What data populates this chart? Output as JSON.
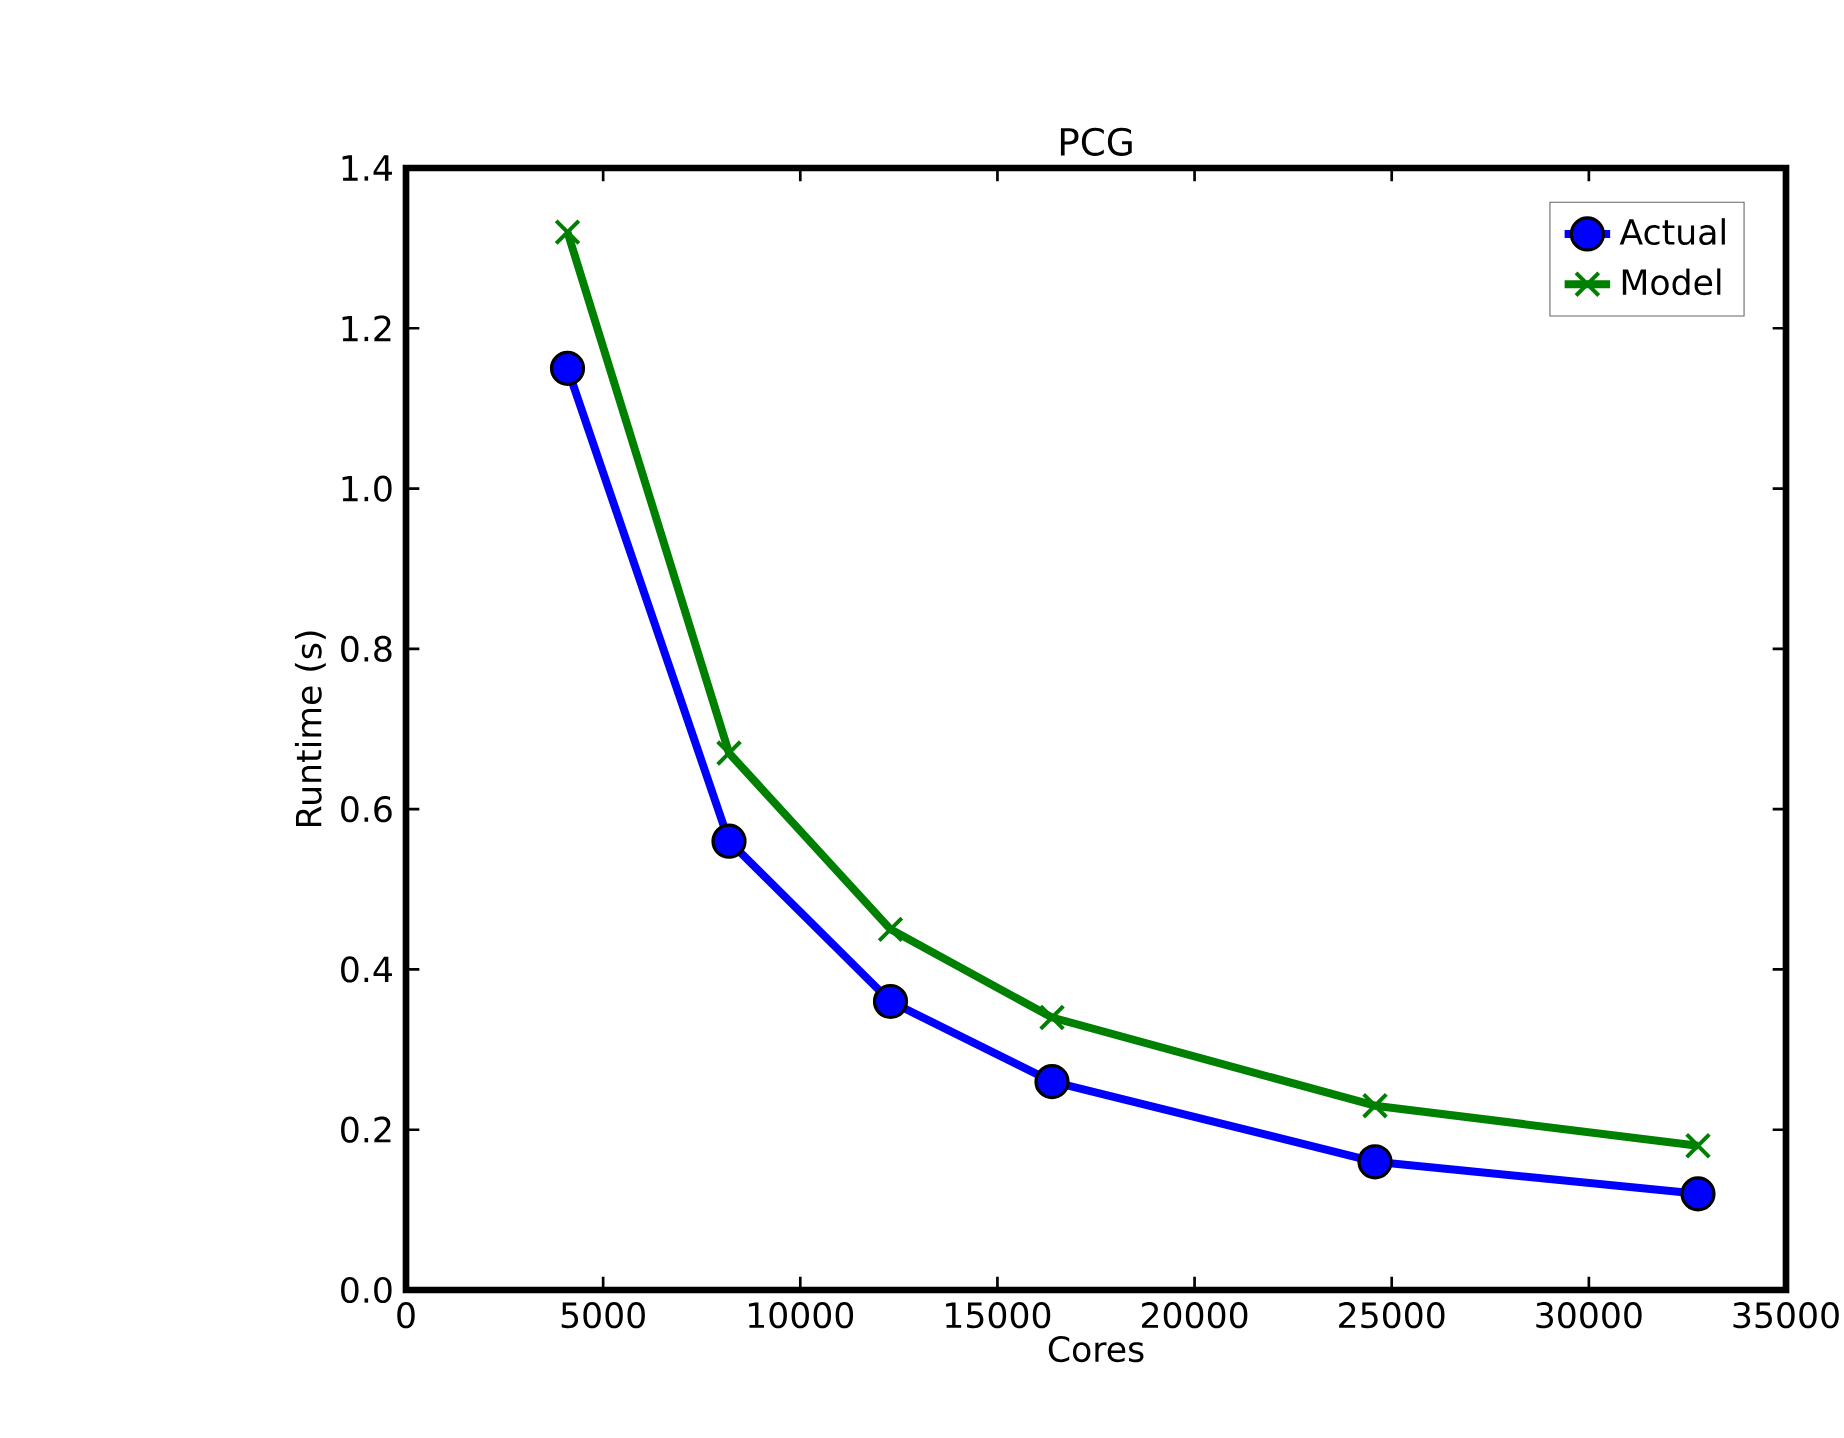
{
  "chart_data": {
    "type": "line",
    "title": "PCG",
    "xlabel": "Cores",
    "ylabel": "Runtime (s)",
    "x": [
      4096,
      8192,
      12288,
      16384,
      24576,
      32768
    ],
    "series": [
      {
        "name": "Actual",
        "color": "#0000ff",
        "marker": "circle",
        "values": [
          1.15,
          0.56,
          0.36,
          0.26,
          0.16,
          0.12
        ]
      },
      {
        "name": "Model",
        "color": "#008000",
        "marker": "cross",
        "values": [
          1.32,
          0.67,
          0.45,
          0.34,
          0.23,
          0.18
        ]
      }
    ],
    "xlim": [
      0,
      35000
    ],
    "ylim": [
      0,
      1.4
    ],
    "xticks": [
      0,
      5000,
      10000,
      15000,
      20000,
      25000,
      30000,
      35000
    ],
    "yticks": [
      {
        "value": 0,
        "label": "0.0"
      },
      {
        "value": 0.2,
        "label": "0.2"
      },
      {
        "value": 0.4,
        "label": "0.4"
      },
      {
        "value": 0.6,
        "label": "0.6"
      },
      {
        "value": 0.8,
        "label": "0.8"
      },
      {
        "value": 1.0,
        "label": "1.0"
      },
      {
        "value": 1.2,
        "label": "1.2"
      },
      {
        "value": 1.4,
        "label": "1.4"
      }
    ],
    "legend": "top right",
    "line_style": "solid"
  }
}
